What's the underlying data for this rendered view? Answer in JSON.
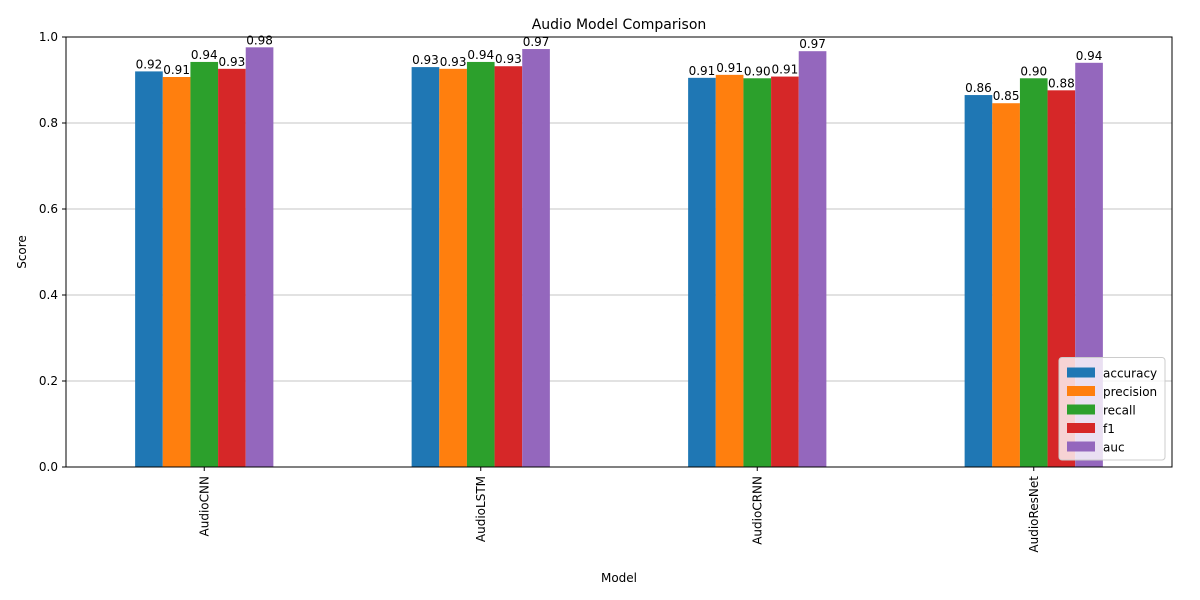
{
  "chart_data": {
    "type": "bar",
    "title": "Audio Model Comparison",
    "xlabel": "Model",
    "ylabel": "Score",
    "ylim": [
      0,
      1.0
    ],
    "yticks": [
      0.0,
      0.2,
      0.4,
      0.6,
      0.8,
      1.0
    ],
    "grid": "y",
    "legend_position": "lower-right",
    "categories": [
      "AudioCNN",
      "AudioLSTM",
      "AudioCRNN",
      "AudioResNet"
    ],
    "series": [
      {
        "name": "accuracy",
        "color": "#1f77b4",
        "values": [
          0.92,
          0.93,
          0.905,
          0.865
        ],
        "labels": [
          "0.92",
          "0.93",
          "0.91",
          "0.86"
        ]
      },
      {
        "name": "precision",
        "color": "#ff7f0e",
        "values": [
          0.907,
          0.926,
          0.912,
          0.846
        ],
        "labels": [
          "0.91",
          "0.93",
          "0.91",
          "0.85"
        ]
      },
      {
        "name": "recall",
        "color": "#2ca02c",
        "values": [
          0.942,
          0.942,
          0.904,
          0.904
        ],
        "labels": [
          "0.94",
          "0.94",
          "0.90",
          "0.90"
        ]
      },
      {
        "name": "f1",
        "color": "#d62728",
        "values": [
          0.926,
          0.932,
          0.908,
          0.876
        ],
        "labels": [
          "0.93",
          "0.93",
          "0.91",
          "0.88"
        ]
      },
      {
        "name": "auc",
        "color": "#9467bd",
        "values": [
          0.976,
          0.972,
          0.967,
          0.94
        ],
        "labels": [
          "0.98",
          "0.97",
          "0.97",
          "0.94"
        ]
      }
    ]
  }
}
